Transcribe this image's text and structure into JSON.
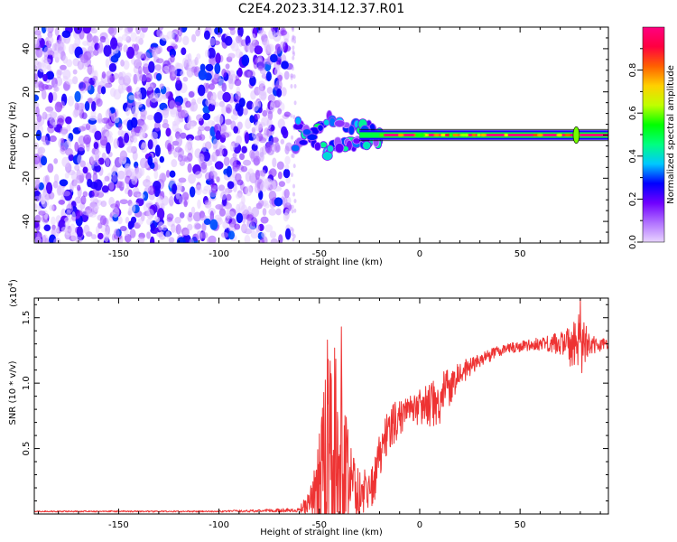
{
  "figure_title": "C2E4.2023.314.12.37.R01",
  "chart_data": [
    {
      "type": "heatmap",
      "title": "C2E4.2023.314.12.37.R01",
      "xlabel": "Height of straight line (km)",
      "ylabel": "Frequency (Hz)",
      "xlim": [
        -192,
        94
      ],
      "ylim": [
        -50,
        50
      ],
      "x_ticks": [
        -150,
        -100,
        -50,
        0,
        50
      ],
      "y_ticks": [
        40,
        20,
        0,
        -20,
        -40
      ],
      "colorbar": {
        "label": "Normalized spectral amplitude",
        "range": [
          0,
          1
        ],
        "ticks": [
          0.0,
          0.2,
          0.4,
          0.6,
          0.8
        ],
        "tick_labels": [
          "0.0",
          "0.2",
          "0.4",
          "0.6",
          "0.8"
        ],
        "colors": [
          "#e8d4ff",
          "#b070ff",
          "#7000ff",
          "#0000ff",
          "#00c8ff",
          "#00ff80",
          "#00ff00",
          "#c0ff00",
          "#ffd000",
          "#ff6000",
          "#ff0040",
          "#ff0080"
        ]
      },
      "regions": [
        {
          "name": "noise",
          "x_range": [
            -192,
            -65
          ],
          "y_range": [
            -50,
            50
          ],
          "amplitude": [
            0.0,
            0.12
          ]
        },
        {
          "name": "scattered-onset",
          "x_range": [
            -62,
            -20
          ],
          "y_range": [
            -10,
            12
          ],
          "amplitude": [
            0.1,
            0.5
          ]
        },
        {
          "name": "carrier-line",
          "x_range": [
            -20,
            94
          ],
          "y_range": [
            -1,
            1
          ],
          "amplitude": [
            0.6,
            1.0
          ]
        },
        {
          "name": "carrier-flare",
          "x_center": 78,
          "y_range": [
            -3,
            3
          ],
          "amplitude": [
            0.3,
            0.6
          ]
        }
      ]
    },
    {
      "type": "line",
      "xlabel": "Height of straight line (km)",
      "ylabel": "SNR (10 * v/v)",
      "y_multiplier": "(x10",
      "y_multiplier_exp": "4",
      "y_multiplier_close": ")",
      "xlim": [
        -192,
        94
      ],
      "ylim": [
        0,
        16500
      ],
      "x_ticks": [
        -150,
        -100,
        -50,
        0,
        50
      ],
      "y_ticks": [
        5000,
        10000,
        15000
      ],
      "y_tick_labels": [
        "0.5",
        "1.0",
        "1.5"
      ],
      "line_color": "#ee3333",
      "envelope": {
        "x": [
          -192,
          -100,
          -60,
          -55,
          -50,
          -46,
          -43,
          -40,
          -37,
          -34,
          -30,
          -26,
          -23,
          -20,
          -15,
          -10,
          -5,
          0,
          5,
          10,
          15,
          20,
          30,
          40,
          50,
          60,
          70,
          75,
          80,
          85,
          94
        ],
        "base": [
          200,
          200,
          300,
          900,
          2200,
          3500,
          4200,
          4000,
          3200,
          2500,
          2000,
          1800,
          2200,
          4500,
          6500,
          7400,
          7800,
          8000,
          8300,
          8800,
          9700,
          10700,
          11800,
          12500,
          12800,
          13000,
          13100,
          12900,
          12900,
          13000,
          12800
        ],
        "amp": [
          50,
          60,
          150,
          1200,
          4000,
          8500,
          9500,
          7500,
          5000,
          3500,
          2200,
          1500,
          2000,
          2200,
          1800,
          1400,
          1200,
          1500,
          1700,
          1900,
          1500,
          900,
          600,
          400,
          400,
          500,
          900,
          1800,
          2500,
          700,
          500
        ]
      },
      "peaks": [
        {
          "x": 80,
          "y": 16500
        },
        {
          "x": -39,
          "y": 14300
        },
        {
          "x": -46,
          "y": 13300
        }
      ]
    }
  ]
}
